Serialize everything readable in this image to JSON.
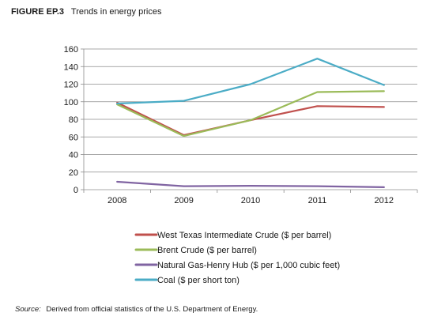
{
  "figure": {
    "label": "FIGURE EP.3",
    "title": "Trends in energy prices"
  },
  "source": {
    "label": "Source:",
    "text": "Derived from official statistics of the U.S. Department of Energy."
  },
  "chart_data": {
    "type": "line",
    "title": "Trends in energy prices",
    "xlabel": "",
    "ylabel": "",
    "categories": [
      "2008",
      "2009",
      "2010",
      "2011",
      "2012"
    ],
    "ylim": [
      0,
      160
    ],
    "yticks": [
      0,
      20,
      40,
      60,
      80,
      100,
      120,
      140,
      160
    ],
    "grid": true,
    "legend_position": "bottom",
    "series": [
      {
        "name": "West Texas Intermediate Crude ($ per barrel)",
        "color": "#c0504d",
        "values": [
          99,
          62,
          79,
          95,
          94
        ]
      },
      {
        "name": "Brent Crude ($ per barrel)",
        "color": "#9bbb59",
        "values": [
          97,
          61,
          79,
          111,
          112
        ]
      },
      {
        "name": "Natural Gas-Henry Hub ($ per 1,000 cubic feet)",
        "color": "#8064a2",
        "values": [
          9,
          4,
          4.4,
          4,
          2.8
        ]
      },
      {
        "name": "Coal ($ per short ton)",
        "color": "#4bacc6",
        "values": [
          98,
          101,
          120,
          149,
          119
        ]
      }
    ]
  }
}
